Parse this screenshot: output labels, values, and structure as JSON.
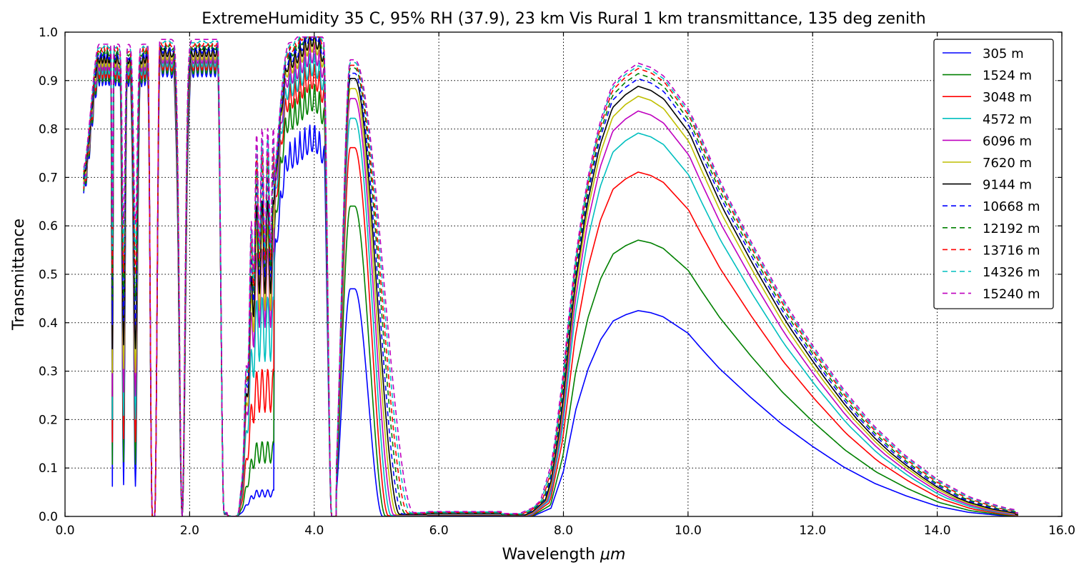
{
  "chart_data": {
    "type": "line",
    "title": "ExtremeHumidity 35 C, 95% RH (37.9), 23 km Vis Rural 1 km transmittance, 135 deg zenith",
    "xlabel_main": "Wavelength ",
    "xlabel_unit": "μm",
    "ylabel": "Transmittance",
    "xlim": [
      0,
      16
    ],
    "ylim": [
      0,
      1
    ],
    "xticks": [
      "0.0",
      "2.0",
      "4.0",
      "6.0",
      "8.0",
      "10.0",
      "12.0",
      "14.0",
      "16.0"
    ],
    "yticks": [
      "0.0",
      "0.1",
      "0.2",
      "0.3",
      "0.4",
      "0.5",
      "0.6",
      "0.7",
      "0.8",
      "0.9",
      "1.0"
    ],
    "grid": true,
    "legend_position": "top-right",
    "window_profile": [
      [
        7.0,
        0.0
      ],
      [
        7.5,
        0.0
      ],
      [
        7.8,
        0.04
      ],
      [
        8.0,
        0.22
      ],
      [
        8.2,
        0.52
      ],
      [
        8.4,
        0.72
      ],
      [
        8.6,
        0.86
      ],
      [
        8.8,
        0.95
      ],
      [
        9.0,
        0.98
      ],
      [
        9.2,
        1.0
      ],
      [
        9.4,
        0.99
      ],
      [
        9.6,
        0.97
      ],
      [
        9.8,
        0.93
      ],
      [
        10.0,
        0.89
      ],
      [
        10.2,
        0.82
      ],
      [
        10.5,
        0.72
      ],
      [
        11.0,
        0.58
      ],
      [
        11.5,
        0.45
      ],
      [
        12.0,
        0.34
      ],
      [
        12.5,
        0.24
      ],
      [
        13.0,
        0.16
      ],
      [
        13.5,
        0.1
      ],
      [
        14.0,
        0.05
      ],
      [
        14.5,
        0.02
      ],
      [
        15.0,
        0.005
      ],
      [
        15.25,
        0.0
      ]
    ],
    "series": [
      {
        "name": "305 m",
        "color": "#0000ff",
        "dashed": false,
        "window_peak": 0.425
      },
      {
        "name": "1524 m",
        "color": "#008000",
        "dashed": false,
        "window_peak": 0.57
      },
      {
        "name": "3048 m",
        "color": "#ff0000",
        "dashed": false,
        "window_peak": 0.71
      },
      {
        "name": "4572 m",
        "color": "#00bfbf",
        "dashed": false,
        "window_peak": 0.79
      },
      {
        "name": "6096 m",
        "color": "#bf00bf",
        "dashed": false,
        "window_peak": 0.835
      },
      {
        "name": "7620 m",
        "color": "#bfbf00",
        "dashed": false,
        "window_peak": 0.865
      },
      {
        "name": "9144 m",
        "color": "#000000",
        "dashed": false,
        "window_peak": 0.885
      },
      {
        "name": "10668 m",
        "color": "#0000ff",
        "dashed": true,
        "window_peak": 0.9
      },
      {
        "name": "12192 m",
        "color": "#008000",
        "dashed": true,
        "window_peak": 0.91
      },
      {
        "name": "13716 m",
        "color": "#ff0000",
        "dashed": true,
        "window_peak": 0.92
      },
      {
        "name": "14326 m",
        "color": "#00bfbf",
        "dashed": true,
        "window_peak": 0.925
      },
      {
        "name": "15240 m",
        "color": "#bf00bf",
        "dashed": true,
        "window_peak": 0.93
      }
    ]
  }
}
